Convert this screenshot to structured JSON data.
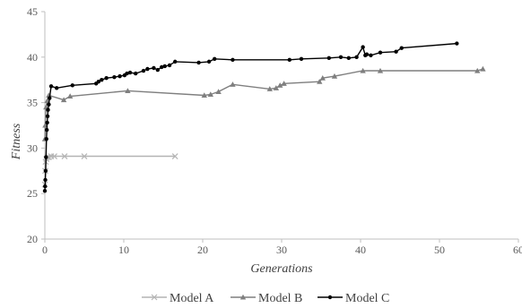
{
  "chart_data": {
    "type": "line",
    "title": "",
    "xlabel": "Generations",
    "ylabel": "Fitness",
    "xlim": [
      0,
      60
    ],
    "ylim": [
      20,
      45
    ],
    "x_ticks": [
      0,
      10,
      20,
      30,
      40,
      50,
      60
    ],
    "y_ticks": [
      20,
      25,
      30,
      35,
      40,
      45
    ],
    "grid": false,
    "legend": "bottom",
    "series": [
      {
        "name": "Model A",
        "color": "#b4b4b4",
        "marker": "x",
        "x": [
          0,
          0.05,
          0.1,
          0.2,
          0.3,
          0.5,
          0.8,
          1.2,
          2.5,
          5,
          16.5
        ],
        "y": [
          26.0,
          27.5,
          28.5,
          28.8,
          29.0,
          29.0,
          29.1,
          29.1,
          29.1,
          29.1,
          29.1
        ]
      },
      {
        "name": "Model B",
        "color": "#7f7f7f",
        "marker": "triangle",
        "x": [
          0,
          0.05,
          0.15,
          0.3,
          0.5,
          2.4,
          3.2,
          10.5,
          20.2,
          21,
          22,
          23.8,
          28.5,
          29.3,
          29.8,
          30.3,
          34.8,
          35.2,
          36.7,
          40.3,
          42.5,
          54.8,
          55.5
        ],
        "y": [
          31.0,
          32.5,
          34.5,
          35.2,
          35.8,
          35.3,
          35.7,
          36.3,
          35.8,
          35.9,
          36.2,
          37.0,
          36.5,
          36.6,
          36.9,
          37.1,
          37.3,
          37.7,
          37.9,
          38.5,
          38.5,
          38.5,
          38.7
        ]
      },
      {
        "name": "Model C",
        "color": "#000000",
        "marker": "circle",
        "x": [
          0,
          0.03,
          0.06,
          0.1,
          0.15,
          0.2,
          0.25,
          0.3,
          0.35,
          0.4,
          0.5,
          0.6,
          0.8,
          1.5,
          3.5,
          6.5,
          6.8,
          7.2,
          7.8,
          8.8,
          9.5,
          10.1,
          10.4,
          10.8,
          11.5,
          12.5,
          13,
          13.8,
          14.3,
          14.8,
          15.2,
          15.8,
          16.5,
          19.5,
          20.8,
          21.5,
          23.8,
          31,
          32.5,
          36,
          37.5,
          38.5,
          39.5,
          40.3,
          40.6,
          40.8,
          41.3,
          42.5,
          44.5,
          45.2,
          52.2
        ],
        "y": [
          25.3,
          25.8,
          26.5,
          27.5,
          29.0,
          31.0,
          32.0,
          32.8,
          33.5,
          34.2,
          34.8,
          35.5,
          36.8,
          36.6,
          36.9,
          37.1,
          37.3,
          37.5,
          37.7,
          37.8,
          37.9,
          38.0,
          38.2,
          38.3,
          38.2,
          38.5,
          38.7,
          38.8,
          38.6,
          38.9,
          39.0,
          39.1,
          39.5,
          39.4,
          39.5,
          39.8,
          39.7,
          39.7,
          39.8,
          39.9,
          40.0,
          39.9,
          40.0,
          41.1,
          40.2,
          40.3,
          40.2,
          40.5,
          40.6,
          41.0,
          41.5
        ]
      }
    ]
  }
}
